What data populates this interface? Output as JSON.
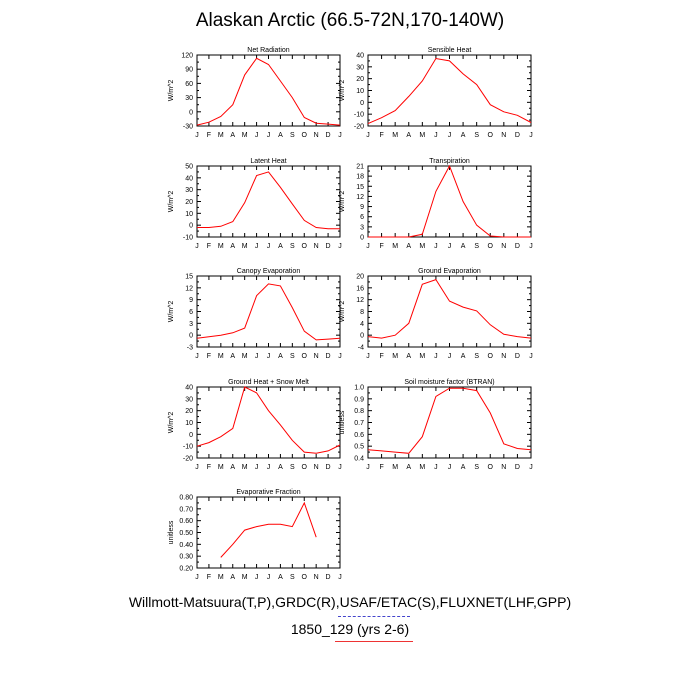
{
  "page": {
    "title": "Alaskan Arctic (66.5-72N,170-140W)",
    "footer_sources": "Willmott-Matsuura(T,P),GRDC(R),USAF/ETAC(S),FLUXNET(LHF,GPP)",
    "footer_case": "1850_129 (yrs 2-6)",
    "line_color": "#ff0000"
  },
  "chart_data": [
    {
      "type": "line",
      "title": "Net Radiation",
      "ylabel": "W/m^2",
      "categories": [
        "J",
        "F",
        "M",
        "A",
        "M",
        "J",
        "J",
        "A",
        "S",
        "O",
        "N",
        "D",
        "J"
      ],
      "yticks": [
        "-30",
        "0",
        "30",
        "60",
        "90",
        "120"
      ],
      "ylim": [
        -30,
        120
      ],
      "values": [
        -28,
        -22,
        -10,
        15,
        78,
        113,
        100,
        65,
        30,
        -12,
        -24,
        -26,
        -28
      ]
    },
    {
      "type": "line",
      "title": "Sensible Heat",
      "ylabel": "W/m^2",
      "categories": [
        "J",
        "F",
        "M",
        "A",
        "M",
        "J",
        "J",
        "A",
        "S",
        "O",
        "N",
        "D",
        "J"
      ],
      "yticks": [
        "-20",
        "-10",
        "0",
        "10",
        "20",
        "30",
        "40"
      ],
      "ylim": [
        -20,
        40
      ],
      "values": [
        -18,
        -13,
        -7,
        5,
        18,
        37,
        35,
        24,
        15,
        -2,
        -8,
        -11,
        -17
      ]
    },
    {
      "type": "line",
      "title": "Latent Heat",
      "ylabel": "W/m^2",
      "categories": [
        "J",
        "F",
        "M",
        "A",
        "M",
        "J",
        "J",
        "A",
        "S",
        "O",
        "N",
        "D",
        "J"
      ],
      "yticks": [
        "-10",
        "0",
        "10",
        "20",
        "30",
        "40",
        "50"
      ],
      "ylim": [
        -10,
        50
      ],
      "values": [
        -2,
        -2,
        -1,
        3,
        19,
        42,
        45,
        32,
        18,
        4,
        -2,
        -3,
        -3
      ]
    },
    {
      "type": "line",
      "title": "Transpiration",
      "ylabel": "W/m^2",
      "categories": [
        "J",
        "F",
        "M",
        "A",
        "M",
        "J",
        "J",
        "A",
        "S",
        "O",
        "N",
        "D",
        "J"
      ],
      "yticks": [
        "0",
        "3",
        "6",
        "9",
        "12",
        "15",
        "18",
        "21"
      ],
      "ylim": [
        0,
        21
      ],
      "values": [
        0,
        0,
        0,
        0,
        0.8,
        13.5,
        21,
        10.5,
        3.5,
        0.3,
        0,
        0,
        0
      ]
    },
    {
      "type": "line",
      "title": "Canopy Evaporation",
      "ylabel": "W/m^2",
      "categories": [
        "J",
        "F",
        "M",
        "A",
        "M",
        "J",
        "J",
        "A",
        "S",
        "O",
        "N",
        "D",
        "J"
      ],
      "yticks": [
        "-3",
        "0",
        "3",
        "6",
        "9",
        "12",
        "15"
      ],
      "ylim": [
        -3,
        15
      ],
      "values": [
        -0.8,
        -0.4,
        0,
        0.6,
        1.8,
        10,
        13,
        12.5,
        7,
        1,
        -1.2,
        -1,
        -0.8
      ]
    },
    {
      "type": "line",
      "title": "Ground Evaporation",
      "ylabel": "W/m^2",
      "categories": [
        "J",
        "F",
        "M",
        "A",
        "M",
        "J",
        "J",
        "A",
        "S",
        "O",
        "N",
        "D",
        "J"
      ],
      "yticks": [
        "-4",
        "0",
        "4",
        "8",
        "12",
        "16",
        "20"
      ],
      "ylim": [
        -4,
        20
      ],
      "values": [
        -0.5,
        -1,
        0,
        4,
        17.2,
        18.8,
        11.5,
        9.5,
        8.2,
        3.5,
        0.3,
        -0.5,
        -1
      ]
    },
    {
      "type": "line",
      "title": "Ground Heat + Snow Melt",
      "ylabel": "W/m^2",
      "categories": [
        "J",
        "F",
        "M",
        "A",
        "M",
        "J",
        "J",
        "A",
        "S",
        "O",
        "N",
        "D",
        "J"
      ],
      "yticks": [
        "-20",
        "-10",
        "0",
        "10",
        "20",
        "30",
        "40"
      ],
      "ylim": [
        -20,
        40
      ],
      "values": [
        -10,
        -7,
        -2,
        5,
        40,
        35,
        20,
        8,
        -5,
        -15,
        -16,
        -14,
        -9
      ]
    },
    {
      "type": "line",
      "title": "Soil moisture factor (BTRAN)",
      "ylabel": "unitless",
      "categories": [
        "J",
        "F",
        "M",
        "A",
        "M",
        "J",
        "J",
        "A",
        "S",
        "O",
        "N",
        "D",
        "J"
      ],
      "yticks": [
        "0.4",
        "0.5",
        "0.6",
        "0.7",
        "0.8",
        "0.9",
        "1.0"
      ],
      "ylim": [
        0.4,
        1.0
      ],
      "values": [
        0.47,
        0.46,
        0.45,
        0.44,
        0.58,
        0.92,
        0.99,
        0.99,
        0.97,
        0.78,
        0.52,
        0.48,
        0.47
      ]
    },
    {
      "type": "line",
      "title": "Evaporative Fraction",
      "ylabel": "unitless",
      "categories": [
        "J",
        "F",
        "M",
        "A",
        "M",
        "J",
        "J",
        "A",
        "S",
        "O",
        "N",
        "D",
        "J"
      ],
      "yticks": [
        "0.20",
        "0.30",
        "0.40",
        "0.50",
        "0.60",
        "0.70",
        "0.80"
      ],
      "ylim": [
        0.2,
        0.8
      ],
      "values": [
        null,
        null,
        0.29,
        0.4,
        0.52,
        0.55,
        0.57,
        0.57,
        0.55,
        0.75,
        0.46,
        null,
        null
      ]
    }
  ]
}
